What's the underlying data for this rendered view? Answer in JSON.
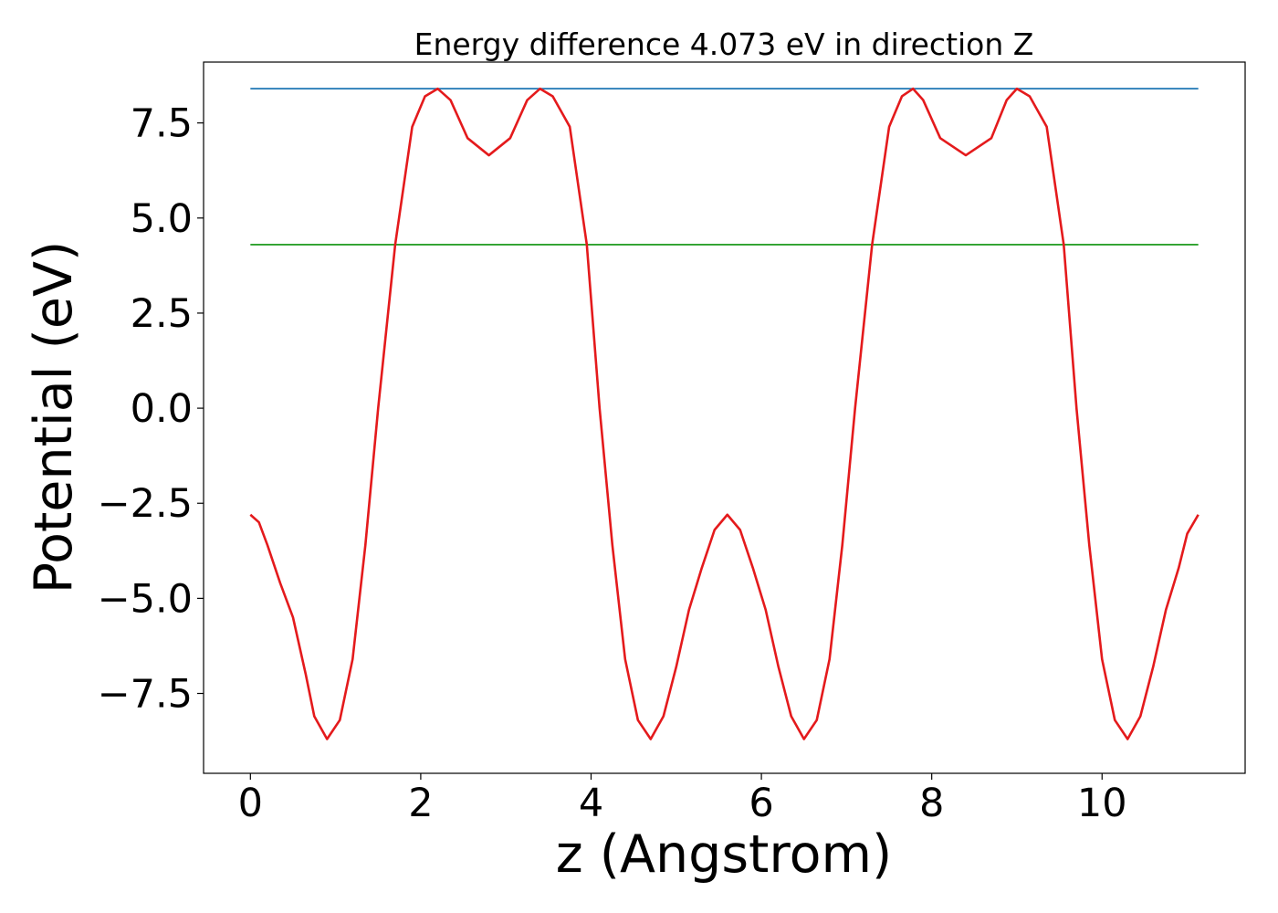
{
  "chart_data": {
    "type": "line",
    "title": "Energy difference 4.073 eV in direction Z",
    "xlabel": "z (Angstrom)",
    "ylabel": "Potential (eV)",
    "xlim": [
      -0.55,
      11.68
    ],
    "ylim": [
      -9.6,
      9.1
    ],
    "xticks": [
      0,
      2,
      4,
      6,
      8,
      10
    ],
    "xtick_labels": [
      "0",
      "2",
      "4",
      "6",
      "8",
      "10"
    ],
    "yticks": [
      -7.5,
      -5.0,
      -2.5,
      0.0,
      2.5,
      5.0,
      7.5
    ],
    "ytick_labels": [
      "−7.5",
      "−5.0",
      "−2.5",
      "0.0",
      "2.5",
      "5.0",
      "7.5"
    ],
    "grid": false,
    "legend": "none",
    "series": [
      {
        "color": "#1f77b4",
        "x": [
          0,
          11.13
        ],
        "y": [
          8.4,
          8.4
        ]
      },
      {
        "color": "#2ca02c",
        "x": [
          0,
          11.13
        ],
        "y": [
          4.3,
          4.3
        ]
      },
      {
        "color": "#e41a1c",
        "x": [
          0.0,
          0.1,
          0.2,
          0.35,
          0.5,
          0.65,
          0.75,
          0.9,
          1.05,
          1.2,
          1.35,
          1.5,
          1.7,
          1.9,
          2.05,
          2.2,
          2.35,
          2.55,
          2.8,
          3.05,
          3.25,
          3.4,
          3.55,
          3.75,
          3.95,
          4.1,
          4.25,
          4.4,
          4.55,
          4.7,
          4.85,
          5.0,
          5.15,
          5.3,
          5.45,
          5.6,
          5.75,
          5.9,
          6.05,
          6.2,
          6.35,
          6.5,
          6.65,
          6.8,
          6.95,
          7.1,
          7.3,
          7.5,
          7.65,
          7.78,
          7.9,
          8.1,
          8.4,
          8.7,
          8.88,
          9.0,
          9.15,
          9.35,
          9.55,
          9.7,
          9.85,
          10.0,
          10.15,
          10.3,
          10.45,
          10.6,
          10.75,
          10.9,
          11.0,
          11.13
        ],
        "y": [
          -2.8,
          -3.0,
          -3.6,
          -4.6,
          -5.5,
          -7.0,
          -8.1,
          -8.7,
          -8.2,
          -6.6,
          -3.6,
          0.0,
          4.3,
          7.4,
          8.2,
          8.4,
          8.1,
          7.1,
          6.65,
          7.1,
          8.1,
          8.4,
          8.2,
          7.4,
          4.3,
          0.0,
          -3.6,
          -6.6,
          -8.2,
          -8.7,
          -8.1,
          -6.8,
          -5.3,
          -4.2,
          -3.2,
          -2.8,
          -3.2,
          -4.2,
          -5.3,
          -6.8,
          -8.1,
          -8.7,
          -8.2,
          -6.6,
          -3.6,
          0.0,
          4.3,
          7.4,
          8.2,
          8.4,
          8.1,
          7.1,
          6.65,
          7.1,
          8.1,
          8.4,
          8.2,
          7.4,
          4.3,
          0.0,
          -3.6,
          -6.6,
          -8.2,
          -8.7,
          -8.1,
          -6.8,
          -5.3,
          -4.2,
          -3.3,
          -2.8
        ]
      }
    ]
  }
}
